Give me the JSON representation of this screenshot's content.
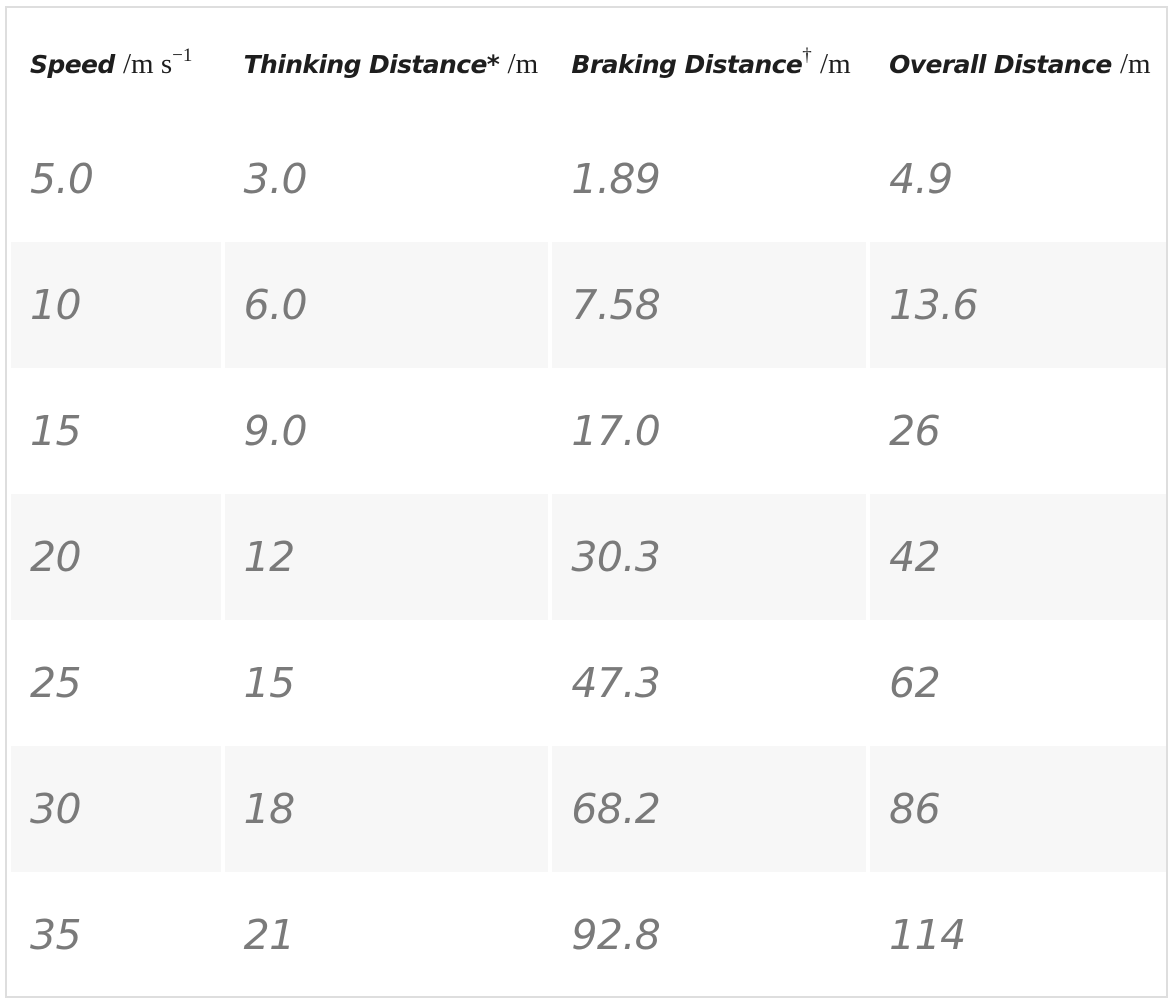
{
  "table": {
    "headers": [
      {
        "name": "Speed",
        "unit": "/m s",
        "sup": "−1"
      },
      {
        "name": "Thinking Distance*",
        "unit": "/m",
        "sup": ""
      },
      {
        "name": "Braking Distance",
        "unit": "/m",
        "sup": "†"
      },
      {
        "name": "Overall Distance",
        "unit": "/m",
        "sup": ""
      }
    ],
    "rows": [
      [
        "5.0",
        "3.0",
        "1.89",
        "4.9"
      ],
      [
        "10",
        "6.0",
        "7.58",
        "13.6"
      ],
      [
        "15",
        "9.0",
        "17.0",
        "26"
      ],
      [
        "20",
        "12",
        "30.3",
        "42"
      ],
      [
        "25",
        "15",
        "47.3",
        "62"
      ],
      [
        "30",
        "18",
        "68.2",
        "86"
      ],
      [
        "35",
        "21",
        "92.8",
        "114"
      ]
    ]
  },
  "colors": {
    "header_text": "#1e1e1e",
    "cell_text": "#7a7a7a",
    "stripe": "#f7f7f7",
    "border": "#dedede"
  }
}
